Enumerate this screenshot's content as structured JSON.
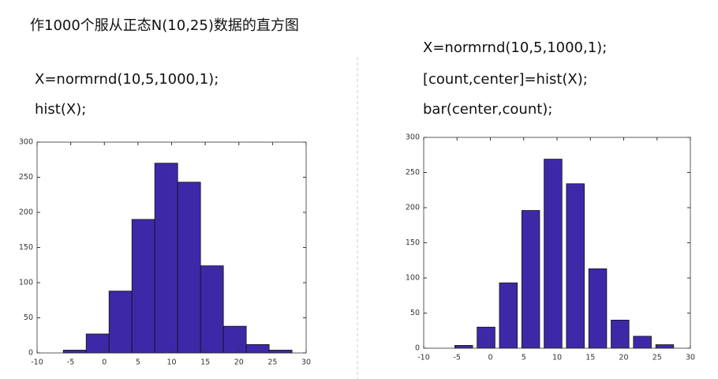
{
  "slide": {
    "title": "作1000个服从正态N(10,25)数据的直方图",
    "left_code": [
      "X=normrnd(10,5,1000,1);",
      "hist(X);"
    ],
    "right_code": [
      "X=normrnd(10,5,1000,1);",
      "[count,center]=hist(X);",
      "bar(center,count);"
    ]
  },
  "chart_data": [
    {
      "type": "histogram",
      "color": "#3d29a8",
      "bins": [
        -6.1,
        -2.7,
        0.7,
        4.1,
        7.5,
        10.9,
        14.3,
        17.7,
        21.1,
        24.5,
        27.9
      ],
      "values": [
        4,
        27,
        88,
        190,
        270,
        243,
        124,
        38,
        12,
        4
      ],
      "xlim": [
        -10,
        30
      ],
      "xticks": [
        -10,
        -5,
        0,
        5,
        10,
        15,
        20,
        25,
        30
      ],
      "ylim": [
        0,
        300
      ],
      "yticks": [
        0,
        50,
        100,
        150,
        200,
        250,
        300
      ],
      "grid": false
    },
    {
      "type": "bar",
      "color": "#3d29a8",
      "x": [
        -4.0,
        -0.65,
        2.7,
        6.05,
        9.4,
        12.75,
        16.1,
        19.45,
        22.8,
        26.15
      ],
      "values": [
        4,
        30,
        93,
        196,
        269,
        234,
        113,
        40,
        17,
        5
      ],
      "xlim": [
        -10,
        30
      ],
      "xticks": [
        -10,
        -5,
        0,
        5,
        10,
        15,
        20,
        25,
        30
      ],
      "ylim": [
        0,
        300
      ],
      "yticks": [
        0,
        50,
        100,
        150,
        200,
        250,
        300
      ],
      "grid": false
    }
  ]
}
